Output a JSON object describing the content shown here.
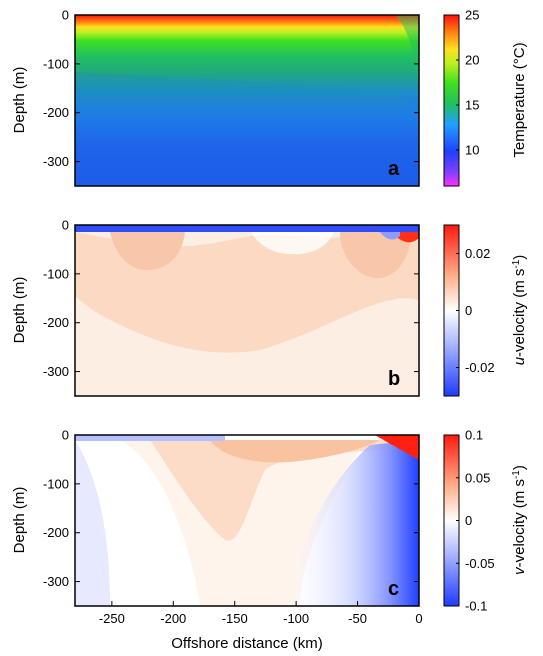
{
  "chart_data": [
    {
      "type": "heatmap",
      "panel": "a",
      "xlabel": "",
      "ylabel": "Depth (m)",
      "xlim": [
        -280,
        0
      ],
      "ylim": [
        -350,
        0
      ],
      "yticks": [
        0,
        -100,
        -200,
        -300
      ],
      "colorbar": {
        "label": "Temperature (°C)",
        "range": [
          6,
          25
        ],
        "ticks": [
          25,
          20,
          15,
          10
        ],
        "colormap": "jet"
      },
      "description_values": {
        "surface_temperature": 24,
        "deep_temperature": 9
      }
    },
    {
      "type": "heatmap",
      "panel": "b",
      "xlabel": "",
      "ylabel": "Depth (m)",
      "xlim": [
        -280,
        0
      ],
      "ylim": [
        -350,
        0
      ],
      "yticks": [
        0,
        -100,
        -200,
        -300
      ],
      "colorbar": {
        "label_italic": "u",
        "label_rest": "-velocity (m s",
        "label_sup": "-1",
        "label_end": ")",
        "range": [
          -0.03,
          0.03
        ],
        "ticks": [
          0.02,
          0,
          -0.02
        ],
        "colormap": "blue-white-red"
      }
    },
    {
      "type": "heatmap",
      "panel": "c",
      "xlabel": "Offshore distance (km)",
      "ylabel": "Depth (m)",
      "xlim": [
        -280,
        0
      ],
      "ylim": [
        -350,
        0
      ],
      "xticks": [
        -250,
        -200,
        -150,
        -100,
        -50,
        0
      ],
      "yticks": [
        0,
        -100,
        -200,
        -300
      ],
      "colorbar": {
        "label_italic": "v",
        "label_rest": "-velocity (m s",
        "label_sup": "-1",
        "label_end": ")",
        "range": [
          -0.1,
          0.1
        ],
        "ticks": [
          0.1,
          0.05,
          0,
          -0.05,
          -0.1
        ],
        "colormap": "blue-white-red"
      }
    }
  ],
  "labels": {
    "panel_a": "a",
    "panel_b": "b",
    "panel_c": "c",
    "ylabel": "Depth (m)",
    "xlabel": "Offshore distance (km)",
    "temp_label": "Temperature (°C)",
    "u_italic": "u",
    "u_rest": "-velocity (m s",
    "v_italic": "v",
    "v_rest": "-velocity (m s",
    "sup": "-1",
    "close": ")"
  },
  "colors": {
    "blue": "#1f3bff",
    "white": "#ffffff",
    "red": "#ff1a0f"
  }
}
